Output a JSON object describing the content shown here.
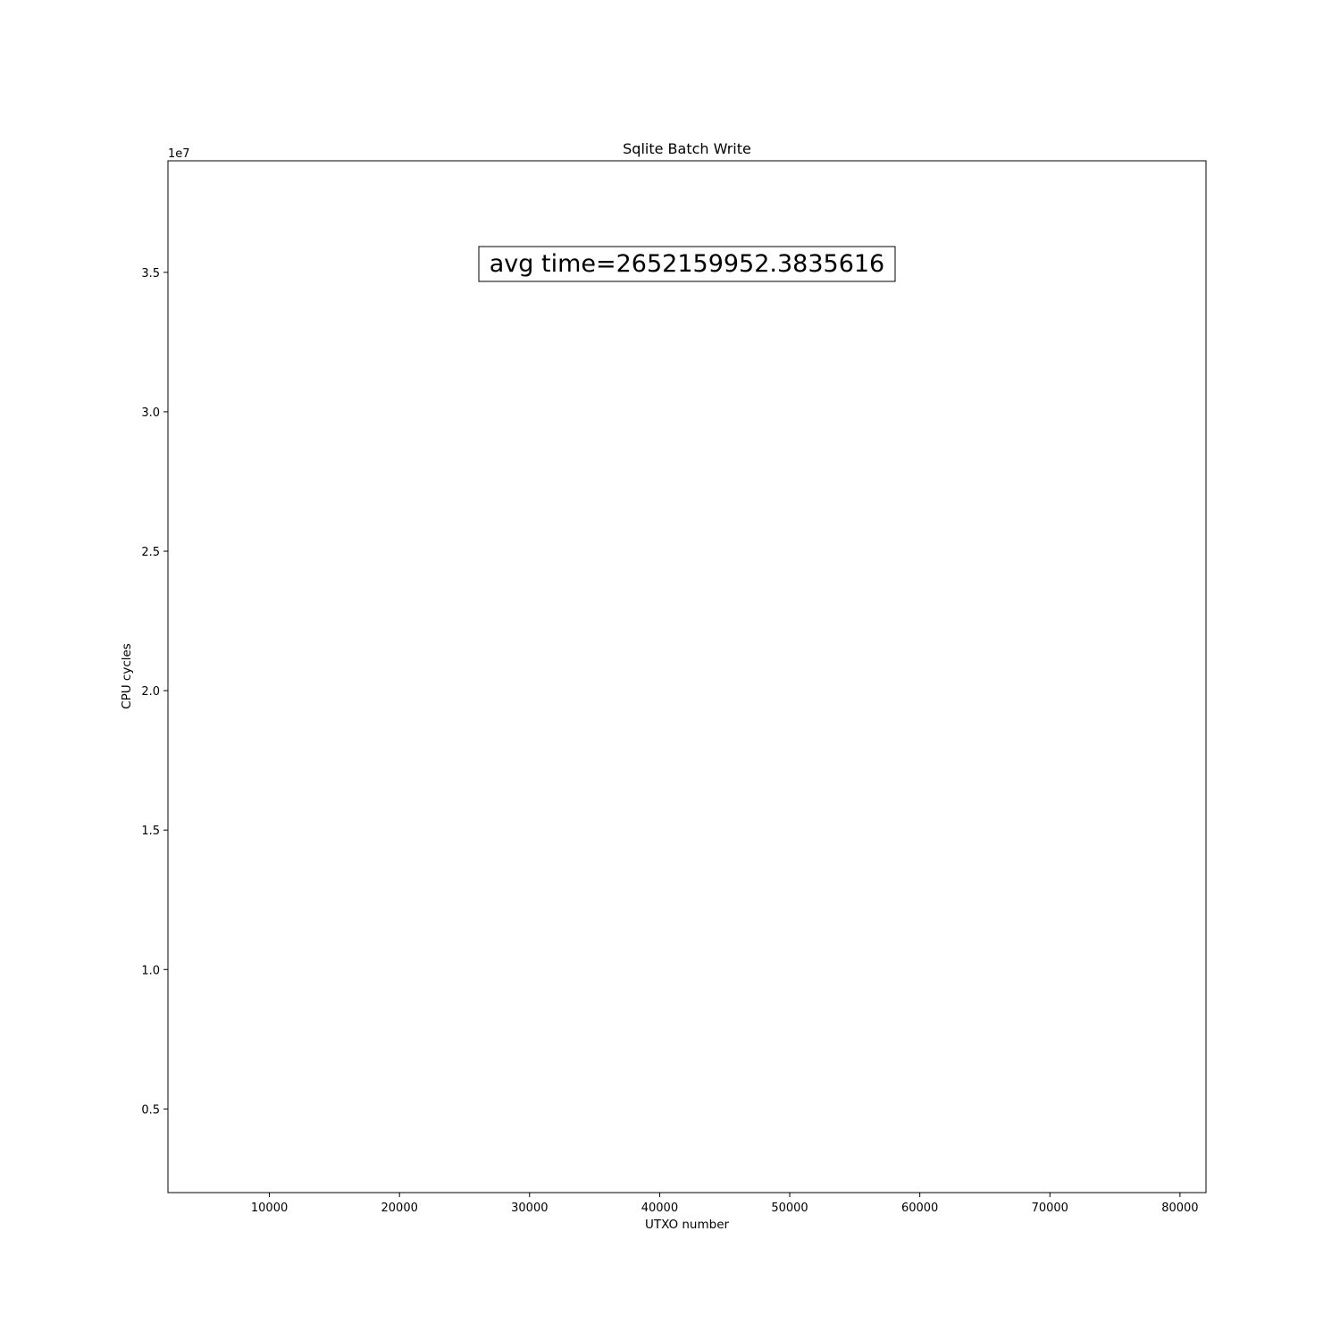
{
  "chart_data": {
    "type": "scatter",
    "title": "Sqlite Batch Write",
    "xlabel": "UTXO number",
    "ylabel": "CPU cycles",
    "y_offset_label": "1e7",
    "xlim": [
      2200,
      82000
    ],
    "ylim": [
      0.2,
      3.9
    ],
    "x_ticks": [
      10000,
      20000,
      30000,
      40000,
      50000,
      60000,
      70000,
      80000
    ],
    "x_tick_labels": [
      "10000",
      "20000",
      "30000",
      "40000",
      "50000",
      "60000",
      "70000",
      "80000"
    ],
    "y_ticks": [
      0.5,
      1.0,
      1.5,
      2.0,
      2.5,
      3.0,
      3.5
    ],
    "y_tick_labels": [
      "0.5",
      "1.0",
      "1.5",
      "2.0",
      "2.5",
      "3.0",
      "3.5"
    ],
    "annotation": "avg time=2652159952.3835616",
    "series": [],
    "grid": false
  }
}
